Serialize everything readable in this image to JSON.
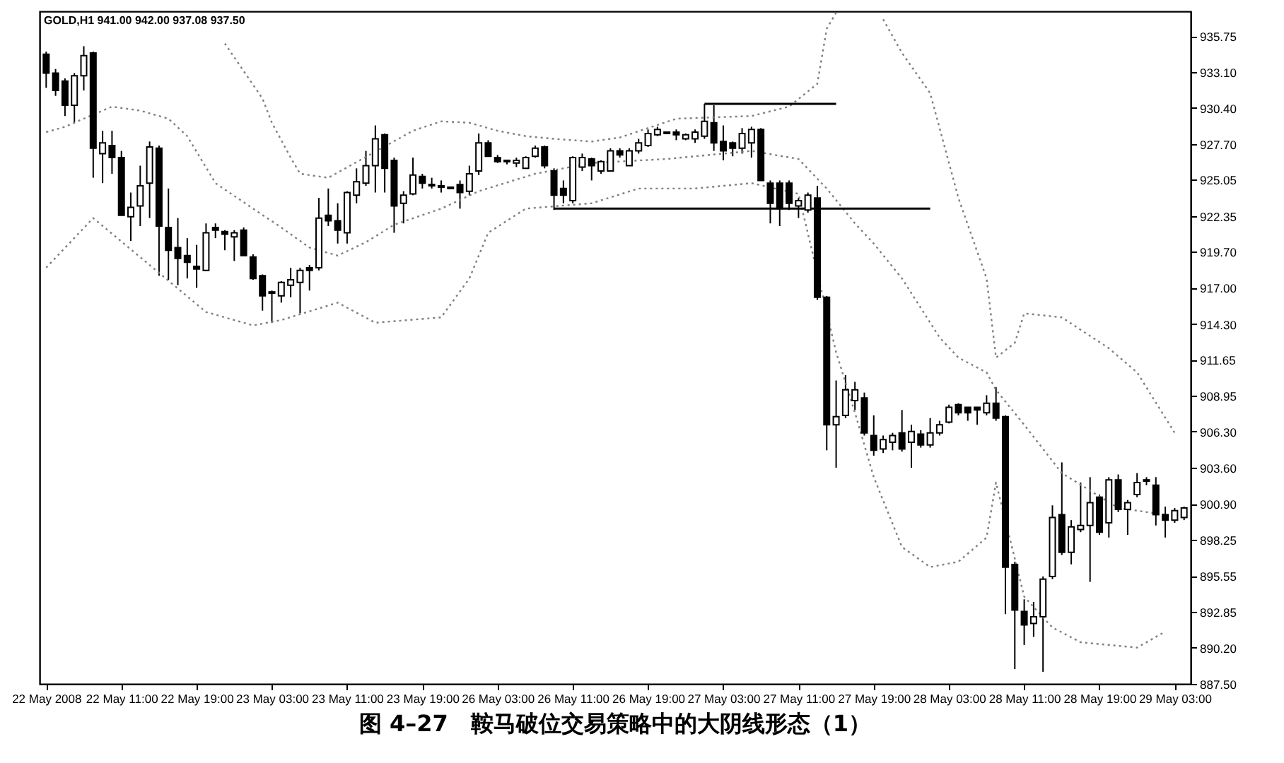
{
  "chart_data": {
    "type": "candlestick",
    "title": "图 4–27　鞍马破位交易策略中的大阴线形态（1）",
    "annotations": [
      "GOLD,H1 941.00 942.00 937.08 937.50"
    ],
    "categories": [
      "22 May 2008",
      null,
      null,
      null,
      null,
      null,
      null,
      null,
      "22 May 11:00",
      null,
      null,
      null,
      null,
      null,
      null,
      null,
      "22 May 19:00",
      null,
      null,
      null,
      null,
      null,
      null,
      null,
      "23 May 03:00",
      null,
      null,
      null,
      null,
      null,
      null,
      null,
      "23 May 11:00",
      null,
      null,
      null,
      null,
      null,
      null,
      null,
      "23 May 19:00",
      null,
      null,
      null,
      null,
      null,
      null,
      null,
      "26 May 03:00",
      null,
      null,
      null,
      null,
      null,
      null,
      null,
      "26 May 11:00",
      null,
      null,
      null,
      null,
      null,
      null,
      null,
      "26 May 19:00",
      null,
      null,
      null,
      null,
      null,
      null,
      null,
      "27 May 03:00",
      null,
      null,
      null,
      null,
      null,
      null,
      null,
      "27 May 11:00",
      null,
      null,
      null,
      null,
      null,
      null,
      null,
      "27 May 19:00",
      null,
      null,
      null,
      null,
      null,
      null,
      null,
      "28 May 03:00",
      null,
      null,
      null,
      null,
      null,
      null,
      null,
      "28 May 11:00",
      null,
      null,
      null,
      null,
      null,
      null,
      null,
      "28 May 19:00",
      null,
      null,
      null,
      null,
      null,
      null,
      null,
      "29 May 03:00",
      null
    ],
    "ohlc": [
      [
        934.4,
        934.6,
        931.9,
        933.0
      ],
      [
        933.0,
        933.3,
        931.3,
        931.7
      ],
      [
        932.4,
        932.6,
        929.8,
        930.6
      ],
      [
        930.6,
        933.0,
        929.3,
        932.8
      ],
      [
        932.8,
        935.0,
        931.7,
        934.3
      ],
      [
        934.5,
        934.6,
        925.2,
        927.4
      ],
      [
        927.0,
        928.7,
        924.8,
        927.8
      ],
      [
        927.6,
        928.7,
        925.5,
        926.7
      ],
      [
        926.7,
        927.2,
        922.4,
        922.4
      ],
      [
        922.3,
        924.1,
        920.5,
        923.0
      ],
      [
        923.1,
        926.1,
        921.6,
        924.6
      ],
      [
        924.8,
        927.9,
        922.2,
        927.5
      ],
      [
        927.4,
        927.6,
        917.9,
        921.6
      ],
      [
        921.5,
        924.4,
        917.6,
        919.8
      ],
      [
        920.0,
        922.2,
        917.2,
        919.2
      ],
      [
        919.4,
        920.7,
        917.7,
        918.9
      ],
      [
        918.6,
        920.2,
        917.0,
        918.4
      ],
      [
        918.3,
        921.8,
        918.3,
        921.1
      ],
      [
        921.5,
        921.8,
        920.7,
        921.3
      ],
      [
        921.2,
        921.3,
        919.8,
        921.0
      ],
      [
        920.8,
        921.3,
        919.0,
        921.1
      ],
      [
        921.3,
        921.5,
        919.4,
        919.4
      ],
      [
        919.3,
        919.5,
        917.6,
        917.7
      ],
      [
        917.9,
        918.0,
        915.3,
        916.4
      ],
      [
        916.6,
        916.8,
        914.4,
        916.7
      ],
      [
        916.4,
        917.5,
        915.9,
        917.4
      ],
      [
        917.2,
        918.5,
        916.3,
        917.6
      ],
      [
        917.4,
        918.5,
        915.1,
        918.3
      ],
      [
        918.5,
        918.7,
        916.8,
        918.3
      ],
      [
        918.5,
        923.7,
        918.3,
        922.2
      ],
      [
        922.4,
        924.4,
        921.6,
        922.0
      ],
      [
        922.0,
        923.3,
        920.3,
        921.3
      ],
      [
        921.1,
        924.2,
        920.3,
        924.1
      ],
      [
        923.9,
        925.9,
        923.3,
        924.9
      ],
      [
        924.8,
        927.2,
        924.6,
        926.1
      ],
      [
        926.1,
        929.1,
        924.1,
        928.1
      ],
      [
        928.4,
        928.5,
        924.1,
        925.9
      ],
      [
        926.5,
        926.7,
        921.1,
        923.1
      ],
      [
        923.3,
        924.2,
        921.8,
        923.9
      ],
      [
        924.0,
        926.7,
        923.9,
        925.4
      ],
      [
        925.3,
        925.5,
        924.4,
        924.8
      ],
      [
        924.7,
        925.2,
        924.4,
        924.6
      ],
      [
        924.6,
        925.0,
        924.1,
        924.5
      ],
      [
        924.5,
        924.5,
        924.4,
        924.4
      ],
      [
        924.7,
        925.0,
        922.9,
        924.1
      ],
      [
        924.2,
        926.1,
        923.9,
        925.5
      ],
      [
        925.7,
        928.5,
        925.4,
        927.8
      ],
      [
        927.8,
        928.0,
        926.8,
        926.8
      ],
      [
        926.7,
        926.9,
        926.3,
        926.4
      ],
      [
        926.4,
        926.5,
        926.2,
        926.5
      ],
      [
        926.3,
        926.7,
        926.0,
        926.5
      ],
      [
        925.9,
        926.8,
        925.9,
        926.7
      ],
      [
        926.8,
        927.6,
        926.7,
        927.4
      ],
      [
        927.5,
        927.6,
        925.9,
        926.1
      ],
      [
        925.7,
        925.9,
        922.8,
        923.9
      ],
      [
        924.4,
        925.0,
        923.3,
        923.9
      ],
      [
        923.5,
        926.8,
        923.3,
        926.7
      ],
      [
        926.0,
        927.0,
        925.7,
        926.7
      ],
      [
        926.6,
        926.7,
        925.0,
        926.1
      ],
      [
        925.7,
        926.5,
        925.5,
        926.4
      ],
      [
        925.7,
        927.4,
        925.7,
        927.2
      ],
      [
        927.2,
        927.4,
        926.7,
        926.9
      ],
      [
        926.1,
        927.4,
        926.1,
        927.2
      ],
      [
        927.2,
        928.1,
        927.0,
        927.8
      ],
      [
        927.6,
        928.8,
        927.5,
        928.5
      ],
      [
        928.4,
        929.0,
        928.3,
        928.8
      ],
      [
        928.6,
        928.6,
        928.5,
        928.5
      ],
      [
        928.6,
        928.8,
        928.0,
        928.4
      ],
      [
        928.1,
        928.5,
        928.0,
        928.4
      ],
      [
        928.1,
        928.8,
        927.8,
        928.6
      ],
      [
        928.3,
        930.7,
        928.1,
        929.4
      ],
      [
        929.3,
        930.6,
        927.2,
        927.8
      ],
      [
        927.9,
        929.1,
        926.5,
        927.2
      ],
      [
        927.8,
        927.9,
        926.8,
        927.4
      ],
      [
        927.4,
        928.9,
        927.0,
        928.5
      ],
      [
        927.8,
        929.0,
        926.7,
        928.8
      ],
      [
        928.8,
        928.9,
        925.0,
        925.0
      ],
      [
        924.8,
        925.0,
        921.8,
        923.3
      ],
      [
        924.8,
        925.0,
        921.6,
        922.9
      ],
      [
        924.8,
        925.0,
        922.8,
        923.3
      ],
      [
        923.1,
        923.7,
        922.2,
        923.5
      ],
      [
        922.8,
        924.1,
        922.6,
        923.9
      ],
      [
        923.7,
        924.6,
        916.1,
        916.3
      ],
      [
        916.3,
        916.4,
        904.9,
        906.8
      ],
      [
        906.8,
        910.1,
        903.6,
        907.4
      ],
      [
        907.5,
        910.5,
        907.3,
        909.4
      ],
      [
        908.6,
        910.0,
        907.9,
        909.4
      ],
      [
        908.8,
        909.2,
        906.0,
        906.2
      ],
      [
        906.0,
        907.5,
        904.5,
        904.9
      ],
      [
        905.0,
        906.0,
        904.7,
        905.7
      ],
      [
        905.5,
        906.2,
        904.9,
        906.0
      ],
      [
        906.2,
        907.9,
        904.8,
        905.0
      ],
      [
        905.5,
        906.8,
        903.6,
        906.3
      ],
      [
        906.1,
        906.4,
        905.1,
        905.3
      ],
      [
        905.3,
        907.3,
        905.1,
        906.2
      ],
      [
        906.2,
        907.1,
        906.0,
        906.8
      ],
      [
        907.0,
        908.3,
        906.9,
        908.1
      ],
      [
        908.3,
        908.4,
        907.5,
        907.7
      ],
      [
        908.1,
        908.1,
        907.1,
        907.7
      ],
      [
        908.1,
        908.1,
        906.8,
        907.9
      ],
      [
        907.7,
        909.0,
        907.5,
        908.4
      ],
      [
        908.4,
        909.6,
        907.1,
        907.3
      ],
      [
        907.4,
        907.5,
        892.7,
        896.2
      ],
      [
        896.4,
        896.6,
        888.6,
        893.0
      ],
      [
        892.9,
        893.8,
        890.4,
        891.9
      ],
      [
        892.0,
        893.6,
        891.0,
        892.5
      ],
      [
        892.5,
        895.5,
        888.4,
        895.3
      ],
      [
        895.5,
        900.8,
        895.3,
        899.9
      ],
      [
        900.1,
        904.0,
        897.1,
        897.3
      ],
      [
        897.3,
        899.7,
        896.4,
        899.2
      ],
      [
        899.0,
        902.5,
        898.8,
        899.3
      ],
      [
        899.3,
        902.9,
        895.1,
        901.0
      ],
      [
        901.4,
        901.6,
        898.6,
        898.8
      ],
      [
        899.5,
        902.9,
        898.4,
        902.7
      ],
      [
        902.7,
        903.1,
        900.3,
        900.5
      ],
      [
        900.5,
        901.2,
        898.6,
        901.0
      ],
      [
        901.6,
        903.2,
        901.4,
        902.5
      ],
      [
        902.6,
        902.9,
        902.3,
        902.7
      ],
      [
        902.3,
        902.9,
        899.3,
        900.1
      ],
      [
        900.1,
        900.7,
        898.4,
        899.7
      ],
      [
        899.7,
        900.6,
        899.5,
        900.4
      ],
      [
        899.9,
        900.7,
        899.7,
        900.6
      ]
    ],
    "series": [
      {
        "type": "line",
        "color": "#808080",
        "line_style": "dotted",
        "values": [
          null,
          null,
          null,
          null,
          null,
          null,
          null,
          null,
          null,
          null,
          null,
          null,
          null,
          null,
          null,
          null,
          null,
          null,
          null,
          935.2,
          null,
          null,
          null,
          931.1,
          929.3,
          null,
          926.7,
          925.5,
          null,
          null,
          925.2,
          null,
          null,
          null,
          null,
          null,
          null,
          null,
          null,
          928.7,
          null,
          null,
          929.4,
          null,
          null,
          929.3,
          null,
          null,
          928.7,
          null,
          null,
          928.3,
          null,
          null,
          928.1,
          null,
          null,
          null,
          927.9,
          null,
          null,
          928.2,
          null,
          null,
          null,
          null,
          null,
          929.6,
          null,
          null,
          null,
          null,
          null,
          null,
          null,
          929.8,
          null,
          null,
          null,
          930.5,
          null,
          null,
          932.2,
          936.3,
          937.5,
          null,
          null,
          null,
          null,
          null,
          null,
          null,
          null,
          null,
          null,
          null,
          null,
          null,
          null,
          null,
          null,
          null,
          null,
          null,
          null,
          null,
          null,
          null,
          null,
          null,
          null,
          null,
          null,
          null,
          null,
          null,
          null,
          null,
          null,
          null,
          null,
          null
        ]
      },
      {
        "type": "line",
        "color": "#808080",
        "line_style": "dotted",
        "values": [
          null,
          null,
          null,
          null,
          null,
          null,
          null,
          null,
          null,
          null,
          null,
          null,
          null,
          null,
          null,
          null,
          null,
          null,
          null,
          null,
          null,
          null,
          null,
          null,
          null,
          null,
          null,
          null,
          null,
          null,
          null,
          null,
          null,
          null,
          null,
          null,
          null,
          null,
          null,
          null,
          null,
          null,
          null,
          null,
          null,
          null,
          null,
          null,
          null,
          null,
          null,
          null,
          null,
          null,
          null,
          null,
          null,
          null,
          null,
          null,
          null,
          null,
          null,
          null,
          null,
          null,
          null,
          null,
          null,
          null,
          null,
          null,
          null,
          null,
          null,
          null,
          null,
          null,
          null,
          null,
          null,
          null,
          null,
          null,
          null,
          null,
          null,
          null,
          null,
          937.0,
          null,
          934.5,
          null,
          null,
          931.5,
          null,
          926.3,
          923.7,
          null,
          null,
          917.7,
          911.8,
          null,
          912.9,
          915.1,
          null,
          null,
          null,
          914.8,
          null,
          null,
          null,
          null,
          912.5,
          null,
          null,
          910.7,
          null,
          null,
          null,
          906.2,
          null
        ]
      },
      {
        "type": "line",
        "color": "#808080",
        "line_style": "dotted",
        "values": [
          928.6,
          null,
          929.0,
          null,
          null,
          null,
          null,
          930.5,
          null,
          null,
          930.2,
          null,
          null,
          929.6,
          null,
          928.3,
          null,
          null,
          924.8,
          null,
          null,
          null,
          922.9,
          null,
          null,
          921.5,
          null,
          null,
          920.0,
          null,
          null,
          919.4,
          null,
          null,
          920.4,
          null,
          null,
          921.7,
          null,
          null,
          null,
          null,
          922.9,
          null,
          null,
          null,
          924.2,
          null,
          null,
          null,
          null,
          null,
          925.5,
          null,
          null,
          null,
          null,
          null,
          926.3,
          null,
          null,
          null,
          null,
          null,
          null,
          null,
          926.6,
          null,
          null,
          null,
          null,
          null,
          null,
          null,
          null,
          927.2,
          null,
          null,
          null,
          null,
          926.6,
          null,
          null,
          924.4,
          null,
          null,
          921.8,
          null,
          920.3,
          null,
          null,
          917.7,
          null,
          null,
          null,
          913.3,
          null,
          911.8,
          null,
          null,
          910.7,
          909.4,
          null,
          null,
          906.8,
          null,
          null,
          null,
          903.2,
          null,
          null,
          null,
          null,
          null,
          900.6,
          null,
          null,
          null,
          null,
          900.1,
          null,
          null
        ]
      },
      {
        "type": "line",
        "color": "#808080",
        "line_style": "dotted",
        "values": [
          918.5,
          null,
          null,
          null,
          null,
          922.2,
          null,
          null,
          null,
          null,
          null,
          null,
          null,
          null,
          null,
          null,
          null,
          915.2,
          null,
          null,
          null,
          null,
          914.2,
          null,
          null,
          914.6,
          null,
          null,
          null,
          null,
          null,
          915.9,
          null,
          null,
          null,
          914.4,
          null,
          null,
          null,
          null,
          null,
          null,
          914.8,
          null,
          null,
          917.7,
          null,
          921.1,
          null,
          null,
          null,
          922.9,
          null,
          null,
          null,
          null,
          null,
          null,
          923.3,
          null,
          null,
          null,
          null,
          924.4,
          null,
          null,
          null,
          null,
          null,
          924.4,
          null,
          null,
          null,
          null,
          null,
          924.8,
          null,
          null,
          null,
          null,
          924.0,
          null,
          null,
          null,
          912.2,
          null,
          907.7,
          null,
          902.9,
          null,
          null,
          897.7,
          null,
          null,
          896.2,
          null,
          null,
          896.6,
          null,
          null,
          898.4,
          902.5,
          null,
          null,
          894.0,
          null,
          null,
          891.7,
          null,
          null,
          890.6,
          null,
          null,
          null,
          null,
          null,
          890.2,
          null,
          null,
          891.4,
          null,
          null
        ]
      },
      {
        "type": "line",
        "color": "#000000",
        "line_style": "solid",
        "values": [
          null,
          null,
          null,
          null,
          null,
          null,
          null,
          null,
          null,
          null,
          null,
          null,
          null,
          null,
          null,
          null,
          null,
          null,
          null,
          null,
          null,
          null,
          null,
          null,
          null,
          null,
          null,
          null,
          null,
          null,
          null,
          null,
          null,
          null,
          null,
          null,
          null,
          null,
          null,
          null,
          null,
          null,
          null,
          null,
          null,
          null,
          null,
          null,
          null,
          null,
          null,
          null,
          null,
          null,
          null,
          null,
          null,
          null,
          null,
          null,
          null,
          null,
          null,
          null,
          null,
          null,
          null,
          null,
          null,
          null,
          930.7,
          null,
          null,
          null,
          null,
          null,
          null,
          null,
          null,
          null,
          null,
          null,
          null,
          null,
          930.7,
          null,
          null,
          null,
          null,
          null,
          null,
          null,
          null,
          null,
          null,
          null,
          null,
          null,
          null,
          null,
          null,
          null,
          null,
          null,
          null,
          null,
          null,
          null,
          null,
          null,
          null,
          null,
          null,
          null,
          null,
          null,
          null,
          null,
          null,
          null,
          null,
          null
        ]
      },
      {
        "type": "line",
        "color": "#000000",
        "line_style": "solid",
        "values": [
          null,
          null,
          null,
          null,
          null,
          null,
          null,
          null,
          null,
          null,
          null,
          null,
          null,
          null,
          null,
          null,
          null,
          null,
          null,
          null,
          null,
          null,
          null,
          null,
          null,
          null,
          null,
          null,
          null,
          null,
          null,
          null,
          null,
          null,
          null,
          null,
          null,
          null,
          null,
          null,
          null,
          null,
          null,
          null,
          null,
          null,
          null,
          null,
          null,
          null,
          null,
          null,
          null,
          null,
          922.9,
          null,
          null,
          null,
          null,
          null,
          null,
          null,
          null,
          null,
          null,
          null,
          null,
          null,
          null,
          null,
          null,
          null,
          null,
          null,
          null,
          null,
          null,
          null,
          null,
          null,
          null,
          null,
          null,
          null,
          null,
          null,
          null,
          null,
          null,
          null,
          null,
          null,
          null,
          null,
          922.9,
          null,
          null,
          null,
          null,
          null,
          null,
          null,
          null,
          null,
          null,
          null,
          null,
          null,
          null,
          null,
          null,
          null,
          null,
          null,
          null,
          null,
          null,
          null,
          null,
          null,
          null,
          null
        ]
      }
    ],
    "ylim": [
      887.5,
      937.6
    ],
    "yticks": [
      {
        "value": 935.75,
        "label": "935.75"
      },
      {
        "value": 933.1,
        "label": "933.10"
      },
      {
        "value": 930.4,
        "label": "930.40"
      },
      {
        "value": 927.7,
        "label": "927.70"
      },
      {
        "value": 925.05,
        "label": "925.05"
      },
      {
        "value": 922.35,
        "label": "922.35"
      },
      {
        "value": 919.7,
        "label": "919.70"
      },
      {
        "value": 917.0,
        "label": "917.00"
      },
      {
        "value": 914.3,
        "label": "914.30"
      },
      {
        "value": 911.65,
        "label": "911.65"
      },
      {
        "value": 908.95,
        "label": "908.95"
      },
      {
        "value": 906.3,
        "label": "906.30"
      },
      {
        "value": 903.6,
        "label": "903.60"
      },
      {
        "value": 900.9,
        "label": "900.90"
      },
      {
        "value": 898.25,
        "label": "898.25"
      },
      {
        "value": 895.55,
        "label": "895.55"
      },
      {
        "value": 892.85,
        "label": "892.85"
      },
      {
        "value": 890.2,
        "label": "890.20"
      },
      {
        "value": 887.5,
        "label": "887.50"
      }
    ]
  }
}
